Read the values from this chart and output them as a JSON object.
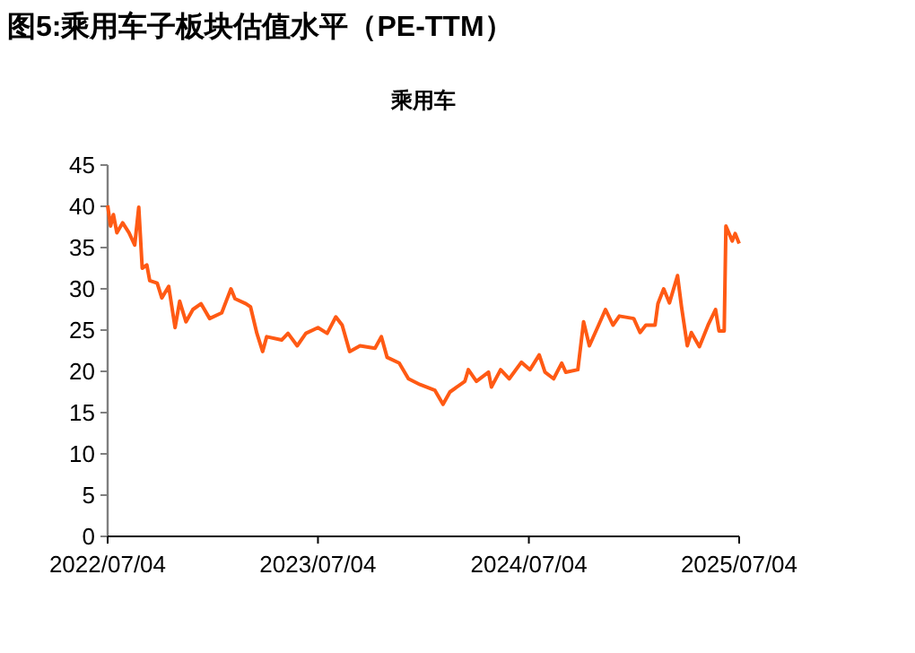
{
  "chart_data": {
    "type": "line",
    "title": "图5:乘用车子板块估值水平（PE-TTM）",
    "subtitle": "乘用车",
    "x": [
      "2022-07-04",
      "2022-07-09",
      "2022-07-14",
      "2022-07-20",
      "2022-07-30",
      "2022-08-10",
      "2022-08-20",
      "2022-08-27",
      "2022-09-02",
      "2022-09-10",
      "2022-09-15",
      "2022-09-28",
      "2022-10-06",
      "2022-10-18",
      "2022-10-29",
      "2022-11-06",
      "2022-11-17",
      "2022-11-29",
      "2022-12-13",
      "2022-12-28",
      "2023-01-18",
      "2023-02-03",
      "2023-02-10",
      "2023-03-01",
      "2023-03-09",
      "2023-03-20",
      "2023-03-30",
      "2023-04-06",
      "2023-05-02",
      "2023-05-13",
      "2023-05-29",
      "2023-06-13",
      "2023-07-04",
      "2023-07-20",
      "2023-08-04",
      "2023-08-15",
      "2023-08-28",
      "2023-09-15",
      "2023-10-11",
      "2023-10-22",
      "2023-11-01",
      "2023-11-22",
      "2023-12-08",
      "2023-12-28",
      "2024-01-23",
      "2024-02-06",
      "2024-02-18",
      "2024-03-15",
      "2024-03-21",
      "2024-04-04",
      "2024-04-25",
      "2024-04-30",
      "2024-05-16",
      "2024-05-31",
      "2024-06-21",
      "2024-07-06",
      "2024-07-22",
      "2024-08-01",
      "2024-08-16",
      "2024-08-30",
      "2024-09-06",
      "2024-09-27",
      "2024-10-07",
      "2024-10-17",
      "2024-11-02",
      "2024-11-14",
      "2024-11-27",
      "2024-12-08",
      "2025-01-02",
      "2025-01-13",
      "2025-01-23",
      "2025-02-08",
      "2025-02-13",
      "2025-02-23",
      "2025-03-05",
      "2025-03-19",
      "2025-03-26",
      "2025-04-05",
      "2025-04-12",
      "2025-04-26",
      "2025-05-11",
      "2025-05-24",
      "2025-05-30",
      "2025-06-08",
      "2025-06-11",
      "2025-06-22",
      "2025-06-27",
      "2025-07-04"
    ],
    "series": [
      {
        "color": "#ff5a14",
        "values": [
          40.1,
          37.6,
          39,
          36.8,
          38,
          36.8,
          35.3,
          39.9,
          32.5,
          32.9,
          31,
          30.7,
          28.9,
          30.3,
          25.3,
          28.5,
          26,
          27.5,
          28.2,
          26.4,
          27.1,
          30,
          28.8,
          28.2,
          27.8,
          24.6,
          22.4,
          24.2,
          23.8,
          24.6,
          23.1,
          24.6,
          25.3,
          24.6,
          26.6,
          25.6,
          22.4,
          23.1,
          22.8,
          24.2,
          21.7,
          21,
          19.1,
          18.4,
          17.7,
          16,
          17.5,
          18.8,
          20.2,
          18.8,
          19.9,
          18.1,
          20.2,
          19.1,
          21.1,
          20.2,
          22,
          19.9,
          19.1,
          21,
          19.9,
          20.2,
          26,
          23.1,
          25.6,
          27.5,
          25.6,
          26.7,
          26.4,
          24.7,
          25.6,
          25.6,
          28.2,
          30,
          28.3,
          31.6,
          27.8,
          23.1,
          24.7,
          23,
          25.6,
          27.5,
          24.9,
          24.9,
          37.6,
          35.8,
          36.7,
          35.5
        ]
      }
    ],
    "xlim": [
      "2022-07-04",
      "2025-07-04"
    ],
    "xticks": [
      {
        "value": "2022-07-04",
        "label": "2022/07/04"
      },
      {
        "value": "2023-07-04",
        "label": "2023/07/04"
      },
      {
        "value": "2024-07-04",
        "label": "2024/07/04"
      },
      {
        "value": "2025-07-04",
        "label": "2025/07/04"
      }
    ],
    "ylim": [
      0,
      45
    ],
    "yticks": [
      0,
      5,
      10,
      15,
      20,
      25,
      30,
      35,
      40,
      45
    ],
    "grid": false,
    "marker": "none",
    "line_style": "solid"
  }
}
